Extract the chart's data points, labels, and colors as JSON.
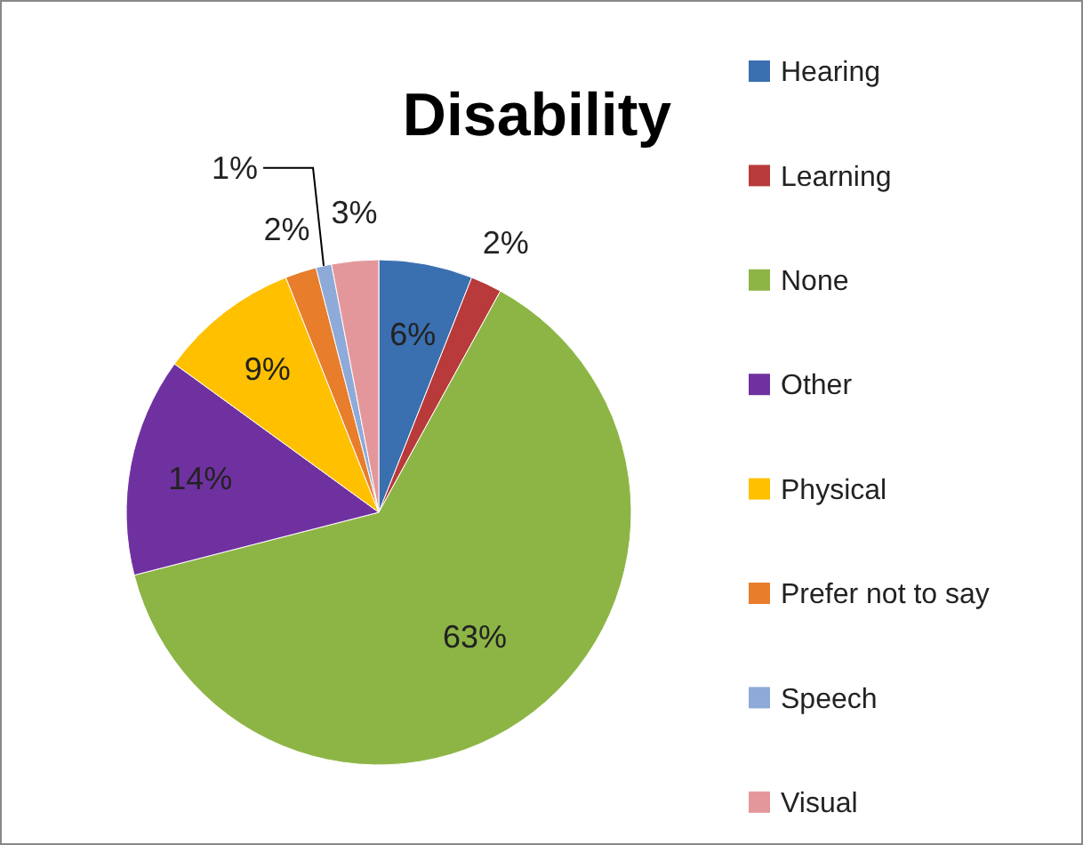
{
  "chart_data": {
    "type": "pie",
    "title": "Disability",
    "categories": [
      "Hearing",
      "Learning",
      "None",
      "Other",
      "Physical",
      "Prefer not to say",
      "Speech",
      "Visual"
    ],
    "values": [
      6,
      2,
      63,
      14,
      9,
      2,
      1,
      3
    ],
    "value_labels": [
      "6%",
      "2%",
      "63%",
      "14%",
      "9%",
      "2%",
      "1%",
      "3%"
    ],
    "colors": [
      "#3a6fb0",
      "#b83a3a",
      "#8db545",
      "#7031a0",
      "#ffc000",
      "#e87d2c",
      "#8eaad8",
      "#e4979a"
    ],
    "legend": "right"
  }
}
